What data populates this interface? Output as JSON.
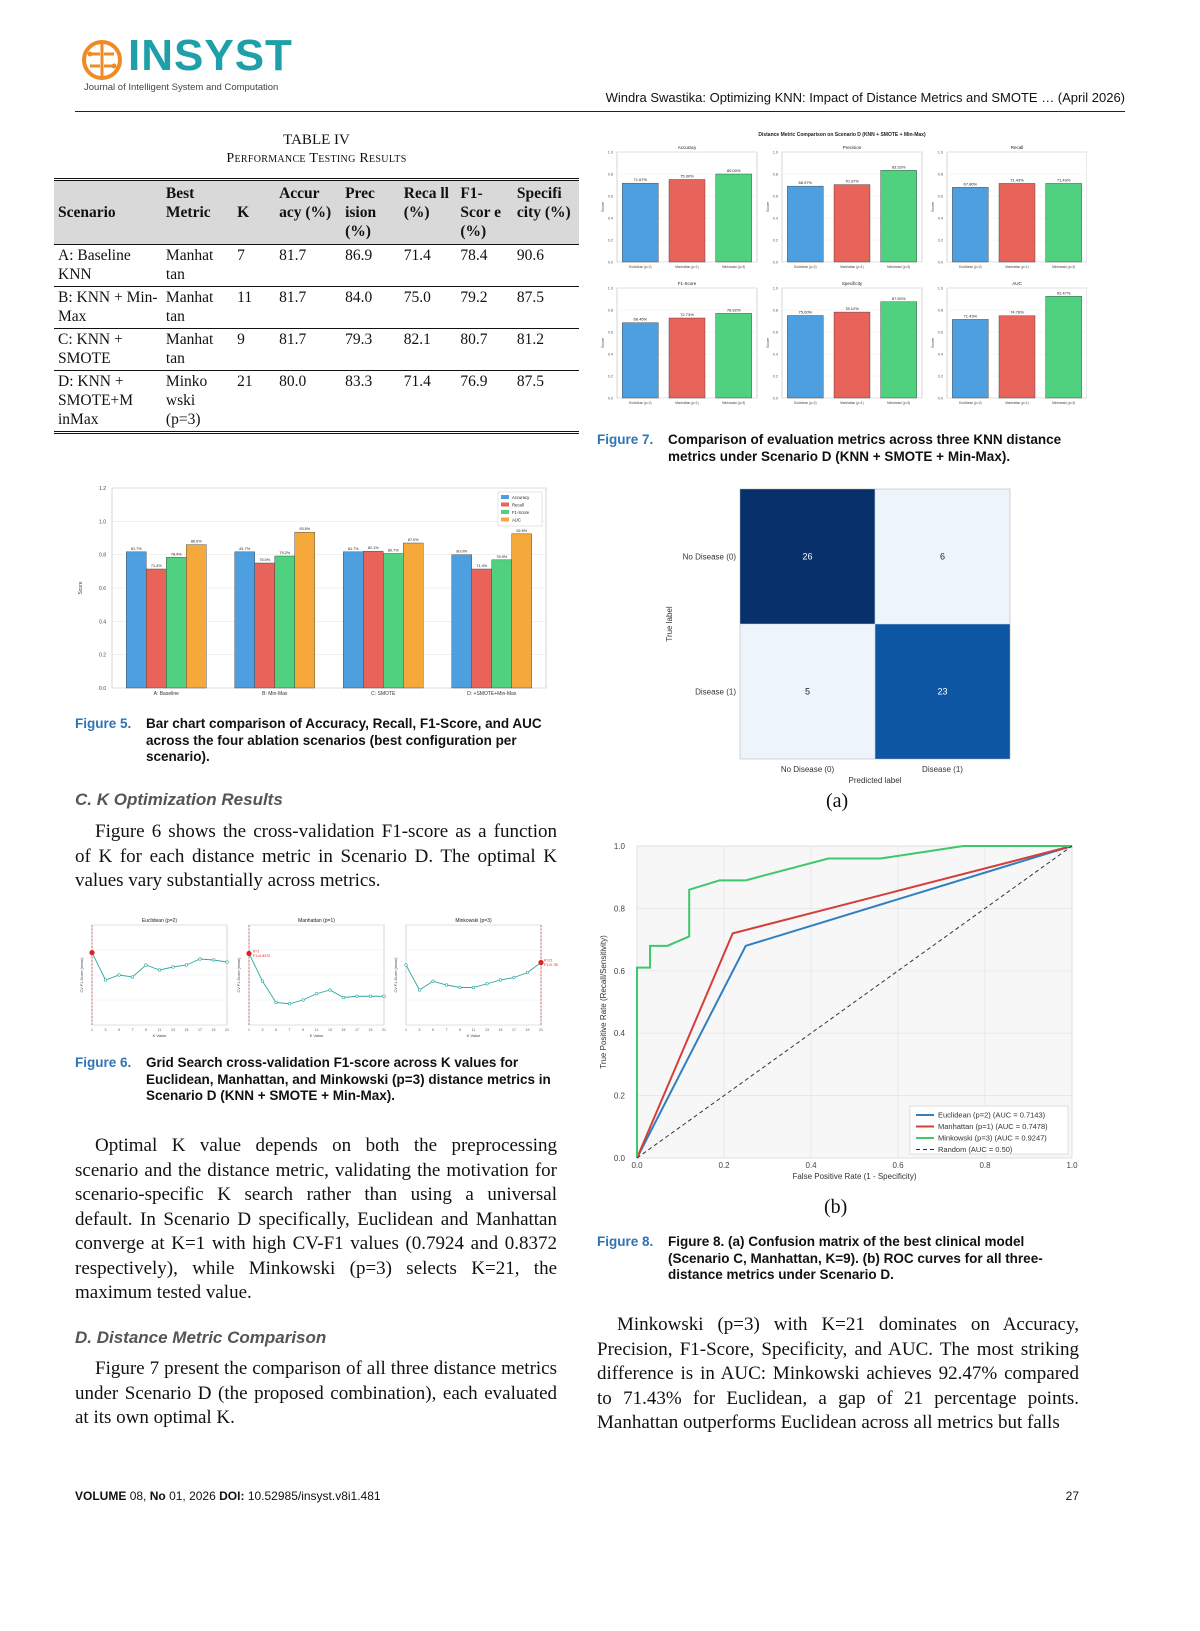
{
  "header": {
    "logo_text": "INSYST",
    "logo_subtitle": "Journal of Intelligent System and Computation",
    "running_title": "Windra Swastika: Optimizing KNN: Impact of Distance Metrics and SMOTE … (April 2026)"
  },
  "table": {
    "label": "TABLE IV",
    "title": "Performance Testing Results",
    "headers": [
      "Scenario",
      "Best Metric",
      "K",
      "Accur acy (%)",
      "Prec ision (%)",
      "Reca ll (%)",
      "F1- Scor e (%)",
      "Specifi city (%)"
    ],
    "rows": [
      [
        "A: Baseline KNN",
        "Manhat tan",
        "7",
        "81.7",
        "86.9",
        "71.4",
        "78.4",
        "90.6"
      ],
      [
        "B: KNN + Min-Max",
        "Manhat tan",
        "11",
        "81.7",
        "84.0",
        "75.0",
        "79.2",
        "87.5"
      ],
      [
        "C: KNN + SMOTE",
        "Manhat tan",
        "9",
        "81.7",
        "79.3",
        "82.1",
        "80.7",
        "81.2"
      ],
      [
        "D: KNN + SMOTE+M inMax",
        "Minko wski (p=3)",
        "21",
        "80.0",
        "83.3",
        "71.4",
        "76.9",
        "87.5"
      ]
    ]
  },
  "fig5": {
    "label": "Figure 5.",
    "caption": "Bar chart comparison of Accuracy, Recall, F1-Score, and AUC across the four ablation scenarios (best configuration per scenario)."
  },
  "fig6": {
    "label": "Figure 6.",
    "caption": "Grid Search cross-validation F1-score across K values for Euclidean, Manhattan, and Minkowski (p=3) distance metrics in Scenario D (KNN + SMOTE + Min-Max)."
  },
  "fig7": {
    "label": "Figure 7.",
    "caption": "Comparison of evaluation metrics across three KNN distance metrics under Scenario D (KNN + SMOTE + Min-Max)."
  },
  "fig8": {
    "label": "Figure 8.",
    "caption": "Figure 8. (a) Confusion matrix of the best clinical model (Scenario C, Manhattan, K=9). (b) ROC curves for all three-distance metrics under Scenario D.",
    "sub_a": "(a)",
    "sub_b": "(b)"
  },
  "sections": {
    "c_title": "C. K Optimization Results",
    "c_para": "Figure 6 shows the cross-validation F1-score as a function of K for each distance metric in Scenario D. The optimal K values vary substantially across metrics.",
    "c_para2": "Optimal K value depends on both the preprocessing scenario and the distance metric, validating the motivation for scenario-specific K search rather than using a universal default. In Scenario D specifically, Euclidean and Manhattan converge at K=1 with high CV-F1 values (0.7924 and 0.8372 respectively), while Minkowski (p=3) selects K=21, the maximum tested value.",
    "d_title": "D. Distance Metric Comparison",
    "d_para": "Figure 7 present the comparison of all three distance metrics under Scenario D (the proposed combination), each evaluated at its own optimal K.",
    "right_para": "Minkowski (p=3) with K=21 dominates on Accuracy, Precision, F1-Score, Specificity, and AUC. The most striking difference is in AUC: Minkowski achieves 92.47% compared to 71.43% for Euclidean, a gap of 21 percentage points. Manhattan outperforms Euclidean across all metrics but falls"
  },
  "footer": {
    "volume_label": "VOLUME",
    "volume": "08,",
    "no_label": "No",
    "no": "01, 2026",
    "doi_label": "DOI:",
    "doi": "10.52985/insyst.v8i1.481",
    "page": "27"
  },
  "colors": {
    "euclidean": "#4e9fe0",
    "manhattan": "#e8645a",
    "minkowski": "#4fd17f",
    "auc": "#f5a93a",
    "cm_dark": "#08306b",
    "cm_mid": "#0d56a3",
    "cm_light": "#eef4fb"
  },
  "chart_data": [
    {
      "type": "bar",
      "id": "fig5",
      "categories": [
        "A: Baseline",
        "B: Min-Max",
        "C: SMOTE",
        "D: +SMOTE+Min-Max"
      ],
      "ylabel": "Score",
      "ylim": [
        0,
        1.2
      ],
      "yticks": [
        "0.0",
        "0.2",
        "0.4",
        "0.6",
        "0.8",
        "1.0",
        "1.2"
      ],
      "legend_position": "top-right",
      "series": [
        {
          "name": "Accuracy",
          "color": "#4e9fe0",
          "values": [
            0.817,
            0.817,
            0.817,
            0.8
          ],
          "labels": [
            "81.7%",
            "81.7%",
            "81.7%",
            "80.0%"
          ]
        },
        {
          "name": "Recall",
          "color": "#e8645a",
          "values": [
            0.714,
            0.75,
            0.821,
            0.714
          ],
          "labels": [
            "71.4%",
            "75.0%",
            "82.1%",
            "71.4%"
          ]
        },
        {
          "name": "F1-Score",
          "color": "#4fd17f",
          "values": [
            0.784,
            0.792,
            0.807,
            0.769
          ],
          "labels": [
            "78.4%",
            "79.2%",
            "80.7%",
            "76.9%"
          ]
        },
        {
          "name": "AUC",
          "color": "#f5a93a",
          "values": [
            0.86,
            0.935,
            0.87,
            0.925
          ],
          "labels": [
            "86.0%",
            "93.5%",
            "87.0%",
            "92.5%"
          ]
        }
      ]
    },
    {
      "type": "line",
      "id": "fig6",
      "panels": [
        {
          "title": "Euclidean (p=2)",
          "xlabel": "K Value",
          "ylabel": "CV F1-Score (mean)",
          "x": [
            1,
            3,
            5,
            7,
            9,
            11,
            13,
            15,
            17,
            19,
            21
          ],
          "values": [
            0.7924,
            0.765,
            0.77,
            0.768,
            0.78,
            0.775,
            0.778,
            0.78,
            0.786,
            0.785,
            0.783
          ],
          "best_k": 1,
          "ylim": [
            0.72,
            0.82
          ]
        },
        {
          "title": "Manhattan (p=1)",
          "xlabel": "K Value",
          "ylabel": "CV F1-Score (mean)",
          "x": [
            1,
            3,
            5,
            7,
            9,
            11,
            13,
            15,
            17,
            19,
            21
          ],
          "values": [
            0.8372,
            0.815,
            0.798,
            0.797,
            0.8,
            0.805,
            0.808,
            0.802,
            0.803,
            0.803,
            0.803
          ],
          "best_k": 1,
          "annotation": "K=1\nF1=0.8372",
          "ylim": [
            0.78,
            0.86
          ]
        },
        {
          "title": "Minkowski (p=3)",
          "xlabel": "K Value",
          "ylabel": "CV F1-Score (mean)",
          "x": [
            1,
            3,
            5,
            7,
            9,
            11,
            13,
            15,
            17,
            19,
            21
          ],
          "values": [
            0.788,
            0.768,
            0.775,
            0.772,
            0.77,
            0.77,
            0.773,
            0.776,
            0.778,
            0.782,
            0.79
          ],
          "best_k": 21,
          "annotation": "K=21\nF1=0.7898",
          "ylim": [
            0.74,
            0.82
          ]
        }
      ]
    },
    {
      "type": "bar",
      "id": "fig7",
      "title": "Distance Metric Comparison on Scenario D (KNN + SMOTE + Min-Max)",
      "categories": [
        "Euclidean (p=2)",
        "Manhattan (p=1)",
        "Minkowski (p=3)"
      ],
      "ylabel": "Score",
      "ylim": [
        0,
        1.0
      ],
      "panels": [
        {
          "title": "Accuracy",
          "values": [
            0.7167,
            0.75,
            0.8
          ],
          "labels": [
            "71.67%",
            "75.00%",
            "80.00%"
          ]
        },
        {
          "title": "Precision",
          "values": [
            0.6897,
            0.7037,
            0.8333
          ],
          "labels": [
            "68.97%",
            "70.37%",
            "83.33%"
          ]
        },
        {
          "title": "Recall",
          "values": [
            0.6786,
            0.7143,
            0.7143
          ],
          "labels": [
            "67.86%",
            "71.43%",
            "71.43%"
          ]
        },
        {
          "title": "F1-Score",
          "values": [
            0.6846,
            0.7273,
            0.7692
          ],
          "labels": [
            "68.46%",
            "72.73%",
            "76.92%"
          ]
        },
        {
          "title": "Specificity",
          "values": [
            0.75,
            0.7812,
            0.875
          ],
          "labels": [
            "75.00%",
            "78.12%",
            "87.50%"
          ]
        },
        {
          "title": "AUC",
          "values": [
            0.7143,
            0.7478,
            0.9247
          ],
          "labels": [
            "71.43%",
            "74.78%",
            "92.47%"
          ]
        }
      ]
    },
    {
      "type": "heatmap",
      "id": "fig8a",
      "xlabel": "Predicted label",
      "ylabel": "True label",
      "x_categories": [
        "No Disease (0)",
        "Disease (1)"
      ],
      "y_categories": [
        "No Disease (0)",
        "Disease (1)"
      ],
      "values": [
        [
          26,
          6
        ],
        [
          5,
          23
        ]
      ]
    },
    {
      "type": "line",
      "id": "fig8b",
      "xlabel": "False Positive Rate (1 - Specificity)",
      "ylabel": "True Positive Rate (Recall/Sensitivity)",
      "xlim": [
        0,
        1
      ],
      "ylim": [
        0,
        1
      ],
      "xticks": [
        "0.0",
        "0.2",
        "0.4",
        "0.6",
        "0.8",
        "1.0"
      ],
      "yticks": [
        "0.0",
        "0.2",
        "0.4",
        "0.6",
        "0.8",
        "1.0"
      ],
      "legend_position": "bottom-right",
      "series": [
        {
          "name": "Euclidean (p=2)  (AUC = 0.7143)",
          "color": "#2f7fc1",
          "x": [
            0,
            0.25,
            1.0
          ],
          "y": [
            0,
            0.68,
            1.0
          ]
        },
        {
          "name": "Manhattan (p=1)  (AUC = 0.7478)",
          "color": "#d33f3a",
          "x": [
            0,
            0.22,
            1.0
          ],
          "y": [
            0,
            0.72,
            1.0
          ]
        },
        {
          "name": "Minkowski (p=3)  (AUC = 0.9247)",
          "color": "#3cc86b",
          "x": [
            0,
            0,
            0.03,
            0.03,
            0.07,
            0.12,
            0.12,
            0.19,
            0.25,
            0.44,
            0.56,
            0.75,
            1.0
          ],
          "y": [
            0,
            0.61,
            0.61,
            0.68,
            0.68,
            0.71,
            0.86,
            0.89,
            0.89,
            0.96,
            0.96,
            1.0,
            1.0
          ]
        },
        {
          "name": "Random (AUC = 0.50)",
          "color": "#333333",
          "dashed": true,
          "x": [
            0,
            1
          ],
          "y": [
            0,
            1
          ]
        }
      ]
    }
  ]
}
